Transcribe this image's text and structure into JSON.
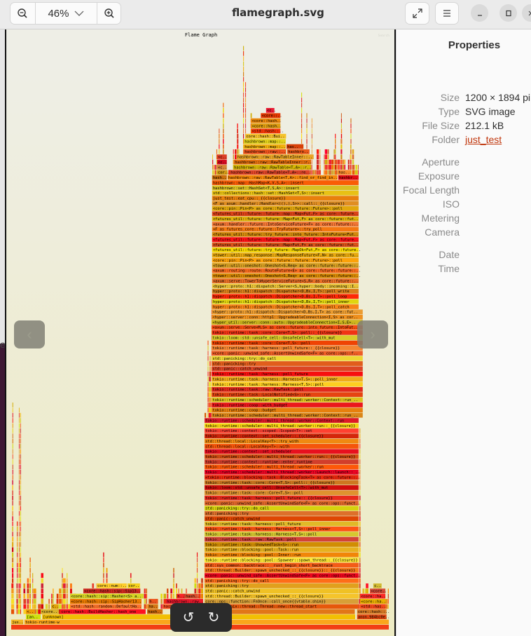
{
  "header": {
    "title": "flamegraph.svg",
    "zoom_level": "46%",
    "zoom_out_icon": "zoom-out-icon",
    "zoom_in_icon": "zoom-in-icon",
    "fullscreen_icon": "fullscreen-icon",
    "menu_icon": "hamburger-menu-icon"
  },
  "properties": {
    "title": "Properties",
    "rows": [
      {
        "label": "Size",
        "value": "1200 × 1894 pi"
      },
      {
        "label": "Type",
        "value": "SVG image"
      },
      {
        "label": "File Size",
        "value": "212.1 kB"
      },
      {
        "label": "Folder",
        "value": "just_test"
      },
      {
        "label": "Aperture",
        "value": ""
      },
      {
        "label": "Exposure",
        "value": ""
      },
      {
        "label": "Focal Length",
        "value": ""
      },
      {
        "label": "ISO",
        "value": ""
      },
      {
        "label": "Metering",
        "value": ""
      },
      {
        "label": "Camera",
        "value": ""
      },
      {
        "label": "Date",
        "value": ""
      },
      {
        "label": "Time",
        "value": ""
      }
    ],
    "link_color": "#c0360c"
  },
  "desktop": {
    "partial_char": "e"
  },
  "flamegraph": {
    "title": "Flame Graph",
    "search_label": "Search",
    "frames": [
      {
        "d": 1,
        "s": 0,
        "w": 3.2,
        "t": "jus.."
      },
      {
        "d": 1,
        "s": 3.5,
        "w": 96.5,
        "t": "tokio-runtime-w"
      },
      {
        "d": 2,
        "s": 3.9,
        "w": 3.9,
        "t": "[an.."
      },
      {
        "d": 2,
        "s": 8.2,
        "w": 82.9,
        "t": "[unknown]"
      },
      {
        "d": 2,
        "s": 91.6,
        "w": 7.8,
        "t": "anon.984bc0e.."
      },
      {
        "d": 3,
        "s": 3.9,
        "w": 2.4,
        "t": "<.."
      },
      {
        "d": 3,
        "s": 7.8,
        "w": 4.6,
        "t": "<core.."
      },
      {
        "d": 3,
        "s": 13.0,
        "w": 22.6,
        "t": "core::hash::BuildHasher::hash_one"
      },
      {
        "d": 3,
        "s": 36.0,
        "w": 4.1,
        "t": "hash.."
      },
      {
        "d": 3,
        "s": 91.6,
        "w": 7.8,
        "t": "core::hash::.."
      },
      {
        "d": 4,
        "s": 10.6,
        "w": 1.9,
        "t": "c.."
      },
      {
        "d": 4,
        "s": 15.6,
        "w": 18.9,
        "t": "<std::hash::random::DefaultHa.."
      },
      {
        "d": 4,
        "s": 36.2,
        "w": 2.6,
        "t": "ha.."
      },
      {
        "d": 4,
        "s": 40.1,
        "w": 10.8,
        "t": "hashbrown.."
      },
      {
        "d": 4,
        "s": 92.4,
        "w": 6.7,
        "t": "<std::has.."
      },
      {
        "d": 5,
        "s": 15.6,
        "w": 18.9,
        "t": "<core::hash::sip::SipHasher13.."
      },
      {
        "d": 5,
        "s": 36.4,
        "w": 2.4,
        "t": "h.."
      },
      {
        "d": 5,
        "s": 41.0,
        "w": 9.8,
        "t": "hashbrown::raw.."
      },
      {
        "d": 5,
        "s": 92.4,
        "w": 6.7,
        "t": "<core::ha.."
      },
      {
        "d": 6,
        "s": 15.6,
        "w": 19.5,
        "t": "<core::hash::sip::Hasher<S> a.."
      },
      {
        "d": 6,
        "s": 43.8,
        "w": 1.9,
        "t": "h.."
      },
      {
        "d": 6,
        "s": 46.0,
        "w": 3.5,
        "t": "hash.."
      },
      {
        "d": 6,
        "s": 92.4,
        "w": 6.7,
        "t": "<core::ha.."
      },
      {
        "d": 7,
        "s": 19.1,
        "w": 15.1,
        "t": "<core::hash::sip::Sip13.."
      },
      {
        "d": 7,
        "s": 95.0,
        "w": 4.1,
        "t": "<core.."
      },
      {
        "d": 8,
        "s": 22.6,
        "w": 8.0,
        "t": "core::num::.."
      },
      {
        "d": 8,
        "s": 30.8,
        "w": 3.3,
        "t": "cor.."
      },
      {
        "d": 8,
        "s": 95.9,
        "w": 2.2,
        "t": "c.."
      },
      {
        "d": 88,
        "s": 54.5,
        "w": 2.8,
        "t": "cor.."
      },
      {
        "d": 88,
        "s": 57.9,
        "w": 21.1,
        "t": "hashbrown::raw::RawTable<T,A>::re.."
      },
      {
        "d": 88,
        "s": 86.5,
        "w": 3.3,
        "t": "has.."
      },
      {
        "d": 89,
        "s": 54.5,
        "w": 2.6,
        "t": "<c.."
      },
      {
        "d": 89,
        "s": 58.8,
        "w": 20.6,
        "t": "hashbrown::raw::RawTable<T,A>::r.."
      },
      {
        "d": 90,
        "s": 54.5,
        "w": 2.6,
        "t": "<c.."
      },
      {
        "d": 90,
        "s": 59.0,
        "w": 20.4,
        "t": "hashbrown::raw::RawTableInner::r.."
      },
      {
        "d": 91,
        "s": 54.5,
        "w": 2.6,
        "t": "<c.."
      },
      {
        "d": 91,
        "s": 59.7,
        "w": 20.4,
        "t": "hashbrown::raw::RawTableInner::.."
      },
      {
        "d": 92,
        "s": 61.6,
        "w": 11.1,
        "t": "hashbrown::raw::.."
      },
      {
        "d": 92,
        "s": 73.1,
        "w": 5.9,
        "t": "hashbro.."
      },
      {
        "d": 93,
        "s": 61.6,
        "w": 11.1,
        "t": "hashbrown::map::.."
      },
      {
        "d": 93,
        "s": 72.9,
        "w": 4.5,
        "t": "has.."
      },
      {
        "d": 94,
        "s": 61.6,
        "w": 11.1,
        "t": "hashbrown::map::.."
      },
      {
        "d": 95,
        "s": 62.0,
        "w": 10.8,
        "t": "core::hash::Bui.."
      },
      {
        "d": 96,
        "s": 63.5,
        "w": 7.8,
        "t": "<std::hash::.."
      },
      {
        "d": 97,
        "s": 63.5,
        "w": 7.8,
        "t": "<core::hash.."
      },
      {
        "d": 98,
        "s": 63.5,
        "w": 7.8,
        "t": "<core::hash.."
      },
      {
        "d": 99,
        "s": 66.1,
        "w": 5.2,
        "t": "<core::.."
      },
      {
        "d": 100,
        "s": 67.5,
        "w": 2.2,
        "t": "<c.."
      },
      {
        "d": 87,
        "s": 53.2,
        "w": 3.9,
        "t": "hash.."
      },
      {
        "d": 87,
        "s": 57.3,
        "w": 29.1,
        "t": "hashbrown::raw::RawTable<T,A>::find_or_find_in.."
      },
      {
        "d": 87,
        "s": 86.6,
        "w": 5.4,
        "t": "hashbr.."
      }
    ],
    "main_stack": {
      "start_depth": 4,
      "spans": [
        {
          "from": 4,
          "to": 40,
          "s": 51.2,
          "w": 40.8
        },
        {
          "from": 41,
          "to": 61,
          "s": 53.1,
          "w": 40.0
        },
        {
          "from": 62,
          "to": 86,
          "s": 53.2,
          "w": 38.8
        }
      ],
      "labels": [
        "std::sys::unix::thread::Thread::new::thread_start",
        "core::ops::function::FnOnce::call_once{{vtable.shim}}",
        "std::thread::Builder::spawn_unchecked_::_{{closure}}",
        "std::panic::catch_unwind",
        "std::panicking::try",
        "std::panicking::try::do_call",
        "<core::panic::unwind_safe::AssertUnwindSafe<F> as core::ops::funct..",
        "std::thread::Builder::spawn_unchecked_::_{{closure}}::_{{closure}}",
        "std::sys_common::backtrace::__rust_begin_short_backtrace",
        "tokio::runtime::blocking::pool::Spawner::spawn_thread::_{{closure}}",
        "tokio::runtime::blocking::pool::Inner::run",
        "tokio::runtime::blocking::pool::Task::run",
        "tokio::runtime::task::UnownedTask<S>::run",
        "tokio::runtime::task::raw::RawTask::poll",
        "tokio::runtime::task::harness::Harness<T,S>::poll",
        "tokio::runtime::task::harness::Harness<T,S>::poll_inner",
        "tokio::runtime::task::harness::poll_future",
        "std::panic::catch_unwind",
        "std::panicking::try",
        "std::panicking::try::do_call",
        "<core::panic::unwind_safe::AssertUnwindSafe<F> as core::ops::funct..",
        "tokio::runtime::task::harness::poll_future::_{{closure}}",
        "tokio::runtime::task::core::Core<T,S>::poll",
        "tokio::loom::std::unsafe_cell::UnsafeCell<T>::with_mut",
        "tokio::runtime::task::core::Core<T,S>::poll::_{{closure}}",
        "<tokio::runtime::blocking::task::BlockingTask<T> as core::future::..",
        "tokio::runtime::scheduler::multi_thread::worker::Launch::launch::_..",
        "tokio::runtime::scheduler::multi_thread::worker::run",
        "tokio::runtime::context::runtime::enter_runtime",
        "tokio::runtime::scheduler::multi_thread::worker::run::_{{closure}}",
        "tokio::runtime::context::set_scheduler",
        "std::thread::local::LocalKey<T>::with",
        "std::thread::local::LocalKey<T>::try_with",
        "tokio::runtime::context::set_scheduler::_{{closure}}",
        "tokio::runtime::context::scoped::Scoped<T>::set",
        "tokio::runtime::scheduler::multi_thread::worker::run::_{{closure}}",
        "tokio::runtime::scheduler::multi_thread::worker::Context::run",
        "tokio::runtime::scheduler::multi_thread::worker::Context::run_..",
        "tokio::runtime::coop::budget",
        "tokio::runtime::coop::with_budget",
        "tokio::runtime::scheduler::multi_thread::worker::Context::run_..",
        "tokio::runtime::task::LocalNotified<S>::run",
        "tokio::runtime::task::raw::RawTask::poll",
        "tokio::runtime::task::harness::Harness<T,S>::poll",
        "tokio::runtime::task::harness::Harness<T,S>::poll_inner",
        "tokio::runtime::task::harness::poll_future",
        "std::panic::catch_unwind",
        "std::panicking::try",
        "std::panicking::try::do_call",
        "<core::panic::unwind_safe::AssertUnwindSafe<F> as core::ops::f..",
        "tokio::runtime::task::harness::poll_future::_{{closure}}",
        "tokio::runtime::task::core::Core<T,S>::poll",
        "tokio::loom::std::unsafe_cell::UnsafeCell<T>::with_mut",
        "tokio::runtime::task::core::Core<T,S>::poll::_{{closure}}",
        "<axum::serve::Serve<M,S> as core::future::into_future::IntoFut..",
        "<hyper_util::server::conn::auto::UpgradeableConnection<I,S,E>..",
        "<hyper::server::conn::http1::UpgradeableConnection<I,S> as cor..",
        "<hyper::proto::h1::dispatch::Dispatcher<D,Bs,I,T> as core::fut..",
        "hyper::proto::h1::dispatch::Dispatcher<D,Bs,I,T>::poll_catch",
        "hyper::proto::h1::dispatch::Dispatcher<D,Bs,I,T>::poll_inner",
        "hyper::proto::h1::dispatch::Dispatcher<D,Bs,I,T>::poll_loop",
        "hyper::proto::h1::dispatch::Dispatcher<D,Bs,I,T>::poll_write",
        "<hyper::proto::h1::dispatch::Server<S,hyper::body::incoming::I..",
        "<axum::serve::TowerToHyperServiceFuture<S,R> as core::future::..",
        "<tower::util::oneshot::Oneshot<S,Req> as core::future::future::..",
        "<axum::routing::route::RouteFuture<E> as core::future::future::..",
        "<tower::util::oneshot::Oneshot<S,Req> as core::future::future::..",
        "<core::pin::Pin<P> as core::future::future::Future>::poll",
        "<tower::util::map_response::MapResponseFuture<F,N> as core::fu..",
        "<futures_util::future::try_future::MapOk<Fut,F> as core::future..",
        "<futures_util::future::future::Map<Fut,F> as core::future::fut..",
        "<futures_util::future::future::map::Map<Fut,F> as core::future..",
        "<futures_util::future::try_future::into_future::IntoFuture<Fut..",
        "<F as futures_core::future::TryFuture>::try_poll",
        "<axum::handler::future::IntoServiceFuture<F> as core::future::..",
        "<futures_util::future::future::Map<Fut,F> as core::future::fut..",
        "<futures_util::future::future::map::Map<Fut,F> as core::future..",
        "<core::pin::Pin<P> as core::future::future::Future>::poll",
        "<F as axum::handler::Handler<((),),S>>::call::_{{closure}}",
        "just_test::eat_cpu::_{{closure}}",
        "std::collections::hash::set::HashSet<T,S>::insert",
        "hashbrown::set::HashSet<T,S,A>::insert",
        "hashbrown::map::HashMap<K,V,S,A>::insert"
      ]
    }
  },
  "overlay": {
    "prev_icon": "chevron-left-icon",
    "next_icon": "chevron-right-icon",
    "rotate_left_icon": "rotate-left-icon",
    "rotate_right_icon": "rotate-right-icon",
    "prev_glyph": "‹",
    "next_glyph": "›",
    "rotate_left_glyph": "↺",
    "rotate_right_glyph": "↻"
  }
}
